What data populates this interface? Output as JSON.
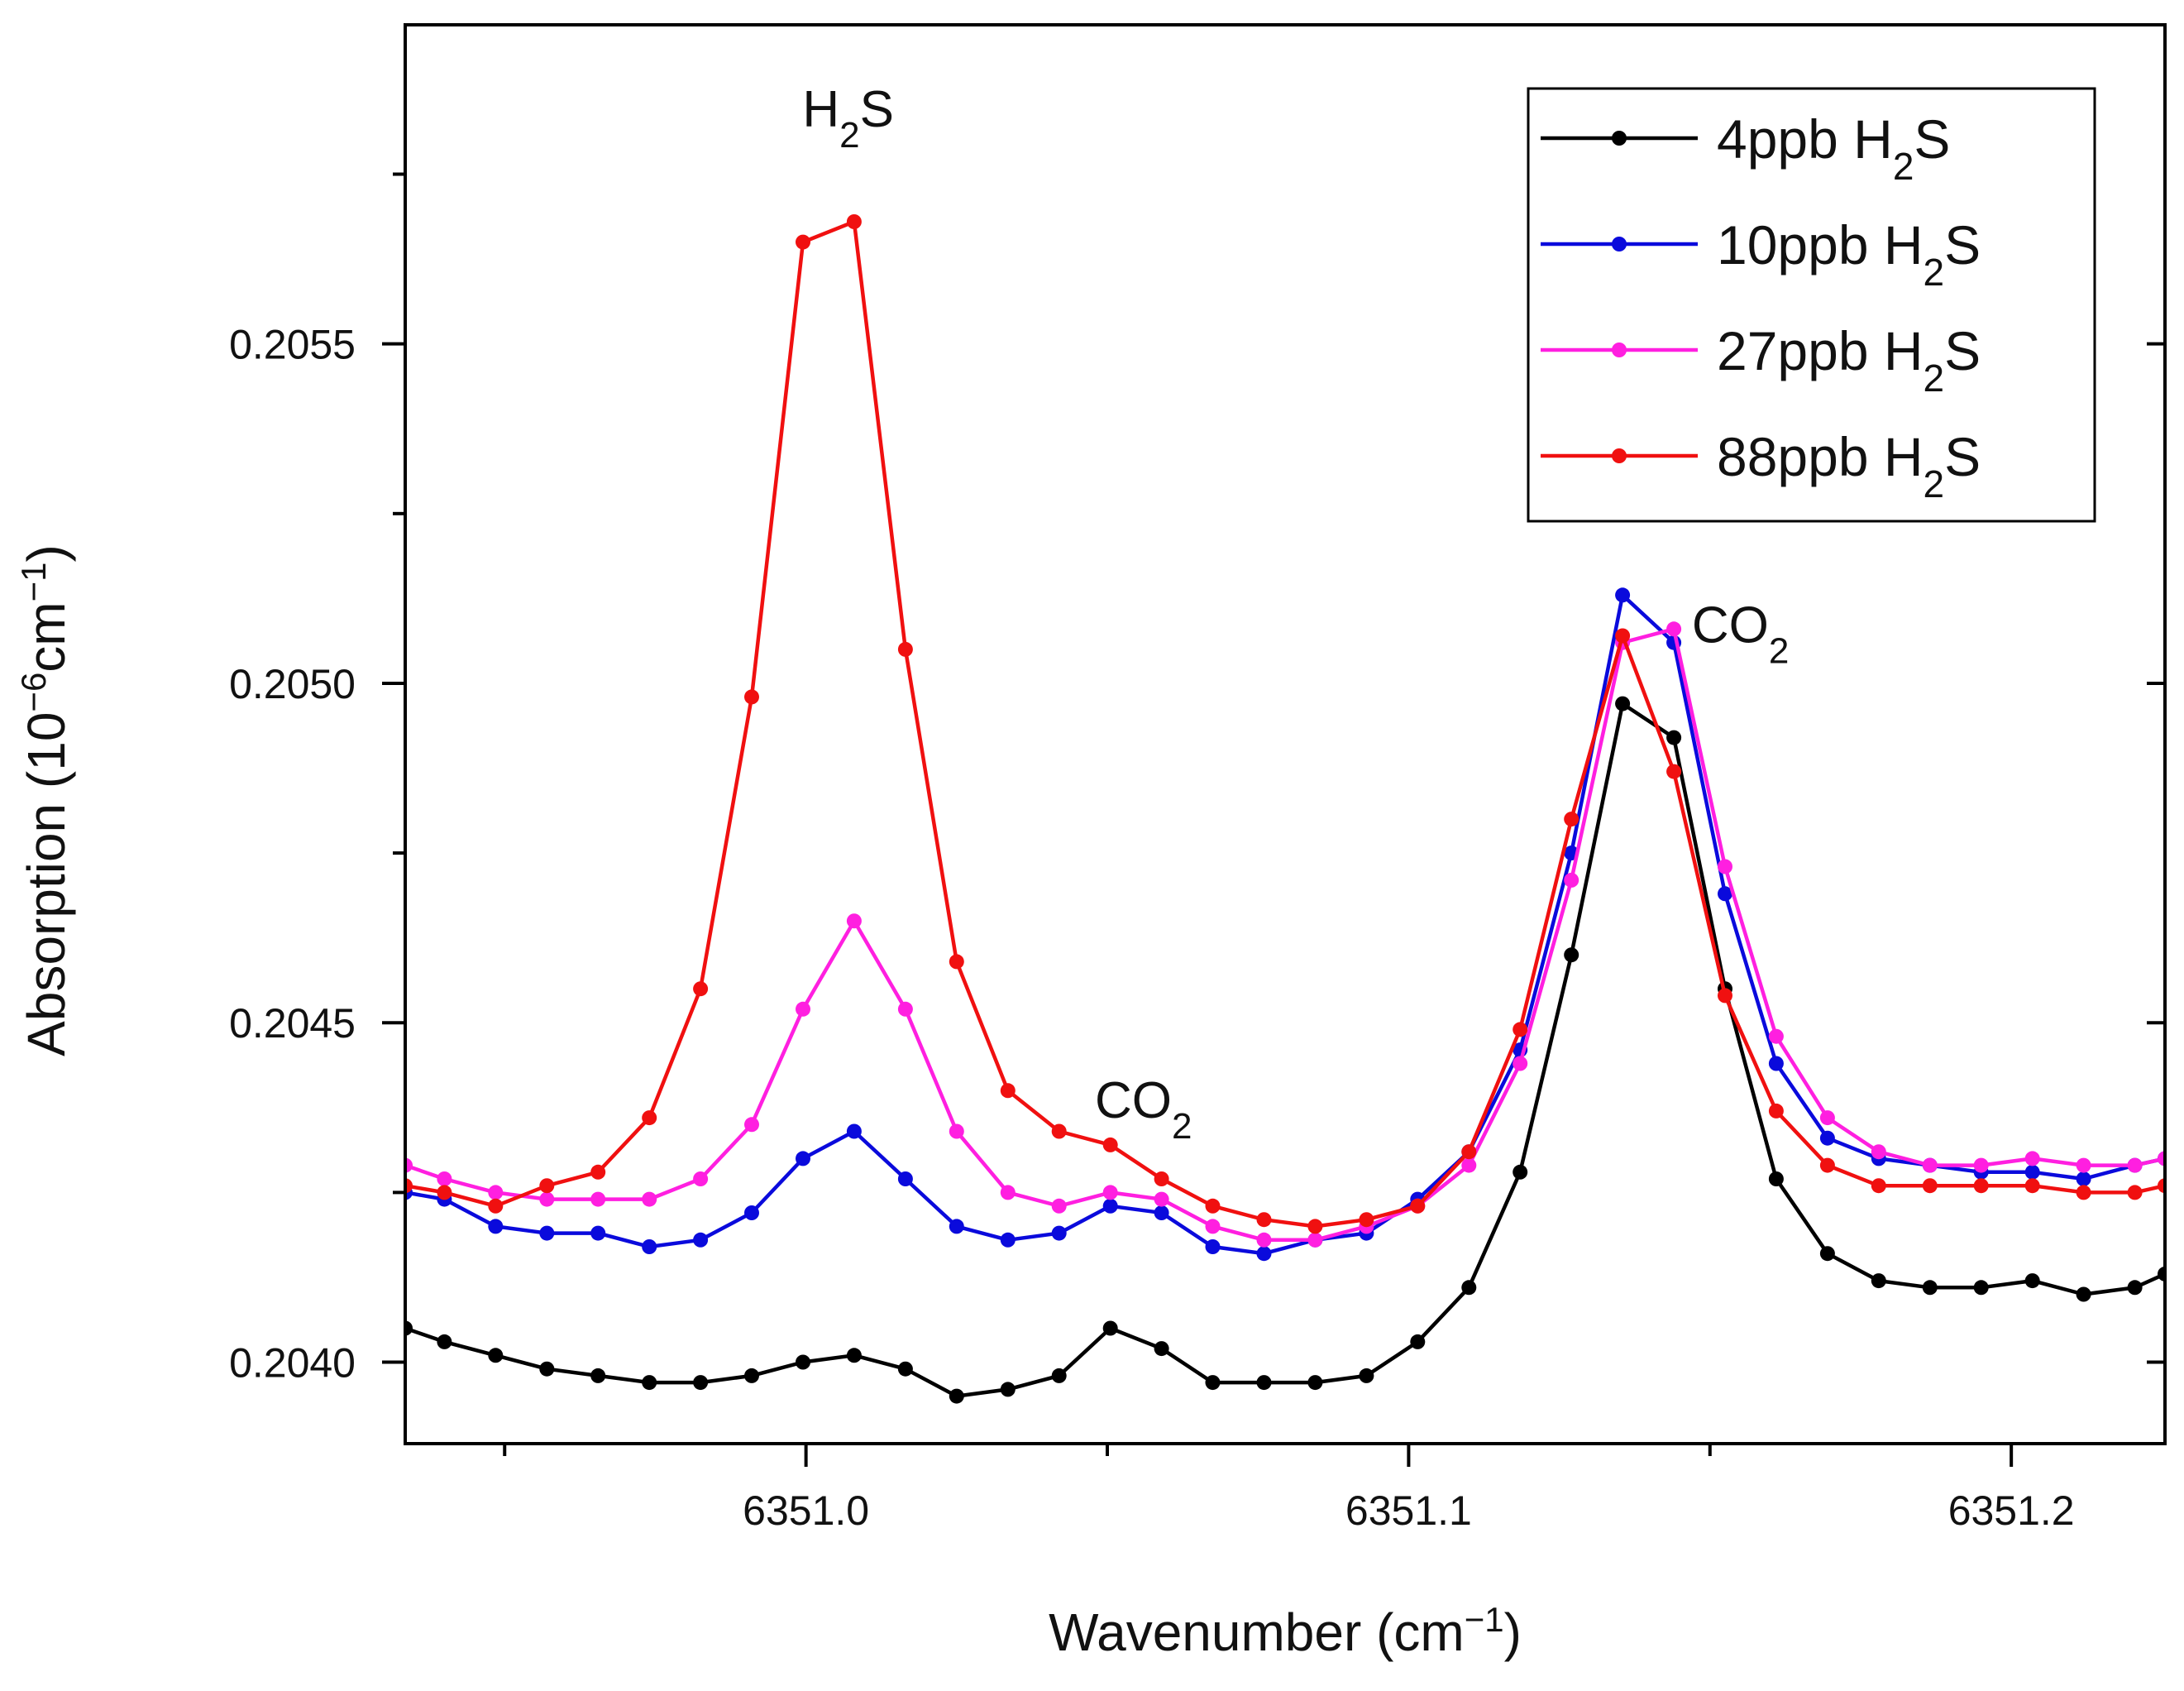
{
  "chart_data": {
    "type": "line",
    "title": "",
    "xlabel": "Wavenumber (cm",
    "xlabel_sup": "−1",
    "xlabel_tail": ")",
    "ylabel": "Absorption (10",
    "ylabel_sup": "−6",
    "ylabel_mid": "cm",
    "ylabel_sup2": "−1",
    "ylabel_tail": ")",
    "xlim": [
      6350.9335,
      6351.2255
    ],
    "ylim": [
      0.20388,
      0.20597
    ],
    "xticks": [
      6351.0,
      6351.1,
      6351.2
    ],
    "xtick_labels": [
      "6351.0",
      "6351.1",
      "6351.2"
    ],
    "xminor": [
      6350.95,
      6351.05,
      6351.15
    ],
    "yticks": [
      0.204,
      0.2045,
      0.205,
      0.2055
    ],
    "ytick_labels": [
      "0.2040",
      "0.2045",
      "0.2050",
      "0.2055"
    ],
    "yminor": [
      0.20425,
      0.20475,
      0.20525,
      0.20575
    ],
    "grid": false,
    "legend_position": "top-right",
    "x": [
      6350.9335,
      6350.94,
      6350.9485,
      6350.957,
      6350.9655,
      6350.974,
      6350.9825,
      6350.991,
      6350.9995,
      6351.008,
      6351.0165,
      6351.025,
      6351.0335,
      6351.042,
      6351.0505,
      6351.059,
      6351.0675,
      6351.076,
      6351.0845,
      6351.093,
      6351.1015,
      6351.11,
      6351.1185,
      6351.127,
      6351.1355,
      6351.144,
      6351.1525,
      6351.161,
      6351.1695,
      6351.178,
      6351.1865,
      6351.195,
      6351.2035,
      6351.212,
      6351.2205,
      6351.2255
    ],
    "series": [
      {
        "name": "4ppb",
        "gas": "H",
        "sub": "2",
        "gas2": "S",
        "color": "#000000",
        "values": [
          0.20405,
          0.20403,
          0.20401,
          0.20399,
          0.20398,
          0.20397,
          0.20397,
          0.20398,
          0.204,
          0.20401,
          0.20399,
          0.20395,
          0.20396,
          0.20398,
          0.20405,
          0.20402,
          0.20397,
          0.20397,
          0.20397,
          0.20398,
          0.20403,
          0.20411,
          0.20428,
          0.2046,
          0.20497,
          0.20492,
          0.20455,
          0.20427,
          0.20416,
          0.20412,
          0.20411,
          0.20411,
          0.20412,
          0.2041,
          0.20411,
          0.20413
        ]
      },
      {
        "name": "10ppb",
        "gas": "H",
        "sub": "2",
        "gas2": "S",
        "color": "#0a0adc",
        "values": [
          0.20425,
          0.20424,
          0.2042,
          0.20419,
          0.20419,
          0.20417,
          0.20418,
          0.20422,
          0.2043,
          0.20434,
          0.20427,
          0.2042,
          0.20418,
          0.20419,
          0.20423,
          0.20422,
          0.20417,
          0.20416,
          0.20418,
          0.20419,
          0.20424,
          0.20431,
          0.20446,
          0.20475,
          0.20513,
          0.20506,
          0.20469,
          0.20444,
          0.20433,
          0.2043,
          0.20429,
          0.20428,
          0.20428,
          0.20427,
          0.20429,
          0.2043
        ]
      },
      {
        "name": "27ppb",
        "gas": "H",
        "sub": "2",
        "gas2": "S",
        "color": "#ff1fe0",
        "values": [
          0.20429,
          0.20427,
          0.20425,
          0.20424,
          0.20424,
          0.20424,
          0.20427,
          0.20435,
          0.20452,
          0.20465,
          0.20452,
          0.20434,
          0.20425,
          0.20423,
          0.20425,
          0.20424,
          0.2042,
          0.20418,
          0.20418,
          0.2042,
          0.20423,
          0.20429,
          0.20444,
          0.20471,
          0.20506,
          0.20508,
          0.20473,
          0.20448,
          0.20436,
          0.20431,
          0.20429,
          0.20429,
          0.2043,
          0.20429,
          0.20429,
          0.2043
        ]
      },
      {
        "name": "88ppb",
        "gas": "H",
        "sub": "2",
        "gas2": "S",
        "color": "#f01010",
        "values": [
          0.20426,
          0.20425,
          0.20423,
          0.20426,
          0.20428,
          0.20436,
          0.20455,
          0.20498,
          0.20565,
          0.20568,
          0.20505,
          0.20459,
          0.2044,
          0.20434,
          0.20432,
          0.20427,
          0.20423,
          0.20421,
          0.2042,
          0.20421,
          0.20423,
          0.20431,
          0.20449,
          0.2048,
          0.20507,
          0.20487,
          0.20454,
          0.20437,
          0.20429,
          0.20426,
          0.20426,
          0.20426,
          0.20426,
          0.20425,
          0.20425,
          0.20426
        ]
      }
    ],
    "annotations": [
      {
        "main": "H",
        "sub": "2",
        "tail": "S",
        "x": 6351.007,
        "y": 0.20582,
        "anchor": "middle"
      },
      {
        "main": "CO",
        "sub": "2",
        "tail": "",
        "x": 6351.056,
        "y": 0.20436,
        "anchor": "middle"
      },
      {
        "main": "CO",
        "sub": "2",
        "tail": "",
        "x": 6351.147,
        "y": 0.20506,
        "anchor": "start"
      }
    ]
  }
}
